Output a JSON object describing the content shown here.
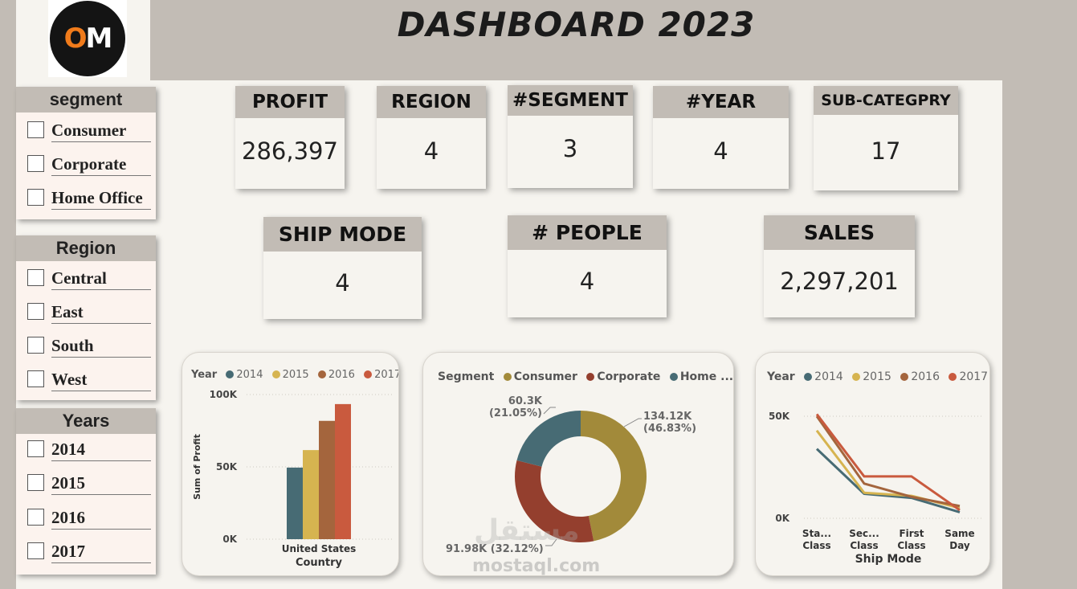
{
  "header": {
    "title": "DASHBOARD 2023",
    "logo_text": "OM"
  },
  "slicers": {
    "segment": {
      "title": "segment",
      "items": [
        "Consumer",
        "Corporate",
        "Home Office"
      ]
    },
    "region": {
      "title": "Region",
      "items": [
        "Central",
        "East",
        "South",
        "West"
      ]
    },
    "years": {
      "title": "Years",
      "items": [
        "2014",
        "2015",
        "2016",
        "2017"
      ]
    }
  },
  "kpis": {
    "profit": {
      "label": "PROFIT",
      "value": "286,397"
    },
    "region": {
      "label": "REGION",
      "value": "4"
    },
    "segment": {
      "label": "#SEGMENT",
      "value": "3"
    },
    "year": {
      "label": "#YEAR",
      "value": "4"
    },
    "subcategory": {
      "label": "SUB-CATEGPRY",
      "value": "17"
    },
    "ship_mode": {
      "label": "SHIP MODE",
      "value": "4"
    },
    "people": {
      "label": "# PEOPLE",
      "value": "4"
    },
    "sales": {
      "label": "SALES",
      "value": "2,297,201"
    }
  },
  "colors": {
    "2014": "#476b74",
    "2015": "#d6b450",
    "2016": "#a4653d",
    "2017": "#c95a3e",
    "consumer": "#a28a3a",
    "corporate": "#943f2e",
    "home_office": "#476b74"
  },
  "chart_data": [
    {
      "type": "bar",
      "legend_title": "Year",
      "series_names": [
        "2014",
        "2015",
        "2016",
        "2017"
      ],
      "categories": [
        "United States"
      ],
      "series": [
        {
          "name": "2014",
          "values": [
            49500
          ]
        },
        {
          "name": "2015",
          "values": [
            61600
          ]
        },
        {
          "name": "2016",
          "values": [
            81800
          ]
        },
        {
          "name": "2017",
          "values": [
            93400
          ]
        }
      ],
      "xlabel": "Country",
      "ylabel": "Sum of Profit",
      "ticks": [
        "100K",
        "50K",
        "0K"
      ],
      "ylim": [
        0,
        100000
      ]
    },
    {
      "type": "pie",
      "legend_title": "Segment",
      "legend_labels": [
        "Consumer",
        "Corporate",
        "Home ..."
      ],
      "slices": [
        {
          "name": "Consumer",
          "value": 134120,
          "label_value": "134.12K",
          "label_pct": "(46.83%)"
        },
        {
          "name": "Corporate",
          "value": 91980,
          "label_value": "91.98K",
          "label_pct": "(32.12%)"
        },
        {
          "name": "Home Office",
          "value": 60300,
          "label_value": "60.3K",
          "label_pct": "(21.05%)"
        }
      ],
      "corporate_label": "91.98K (32.12%)"
    },
    {
      "type": "line",
      "legend_title": "Year",
      "series_names": [
        "2014",
        "2015",
        "2016",
        "2017"
      ],
      "categories": [
        "Standard Class",
        "Second Class",
        "First Class",
        "Same Day"
      ],
      "category_labels": [
        [
          "Sta...",
          "Class"
        ],
        [
          "Sec...",
          "Class"
        ],
        [
          "First",
          "Class"
        ],
        [
          "Same",
          "Day"
        ]
      ],
      "series": [
        {
          "name": "2014",
          "values": [
            34000,
            12000,
            10000,
            3000
          ]
        },
        {
          "name": "2015",
          "values": [
            43000,
            12500,
            11000,
            5000
          ]
        },
        {
          "name": "2016",
          "values": [
            50000,
            17000,
            10500,
            6000
          ]
        },
        {
          "name": "2017",
          "values": [
            51000,
            20500,
            20500,
            4000
          ]
        }
      ],
      "xlabel": "Ship Mode",
      "ticks": [
        "50K",
        "0K"
      ],
      "ylim": [
        0,
        50000
      ]
    }
  ],
  "watermark": {
    "latin": "mostaql.com",
    "arabic": "مستقل"
  }
}
